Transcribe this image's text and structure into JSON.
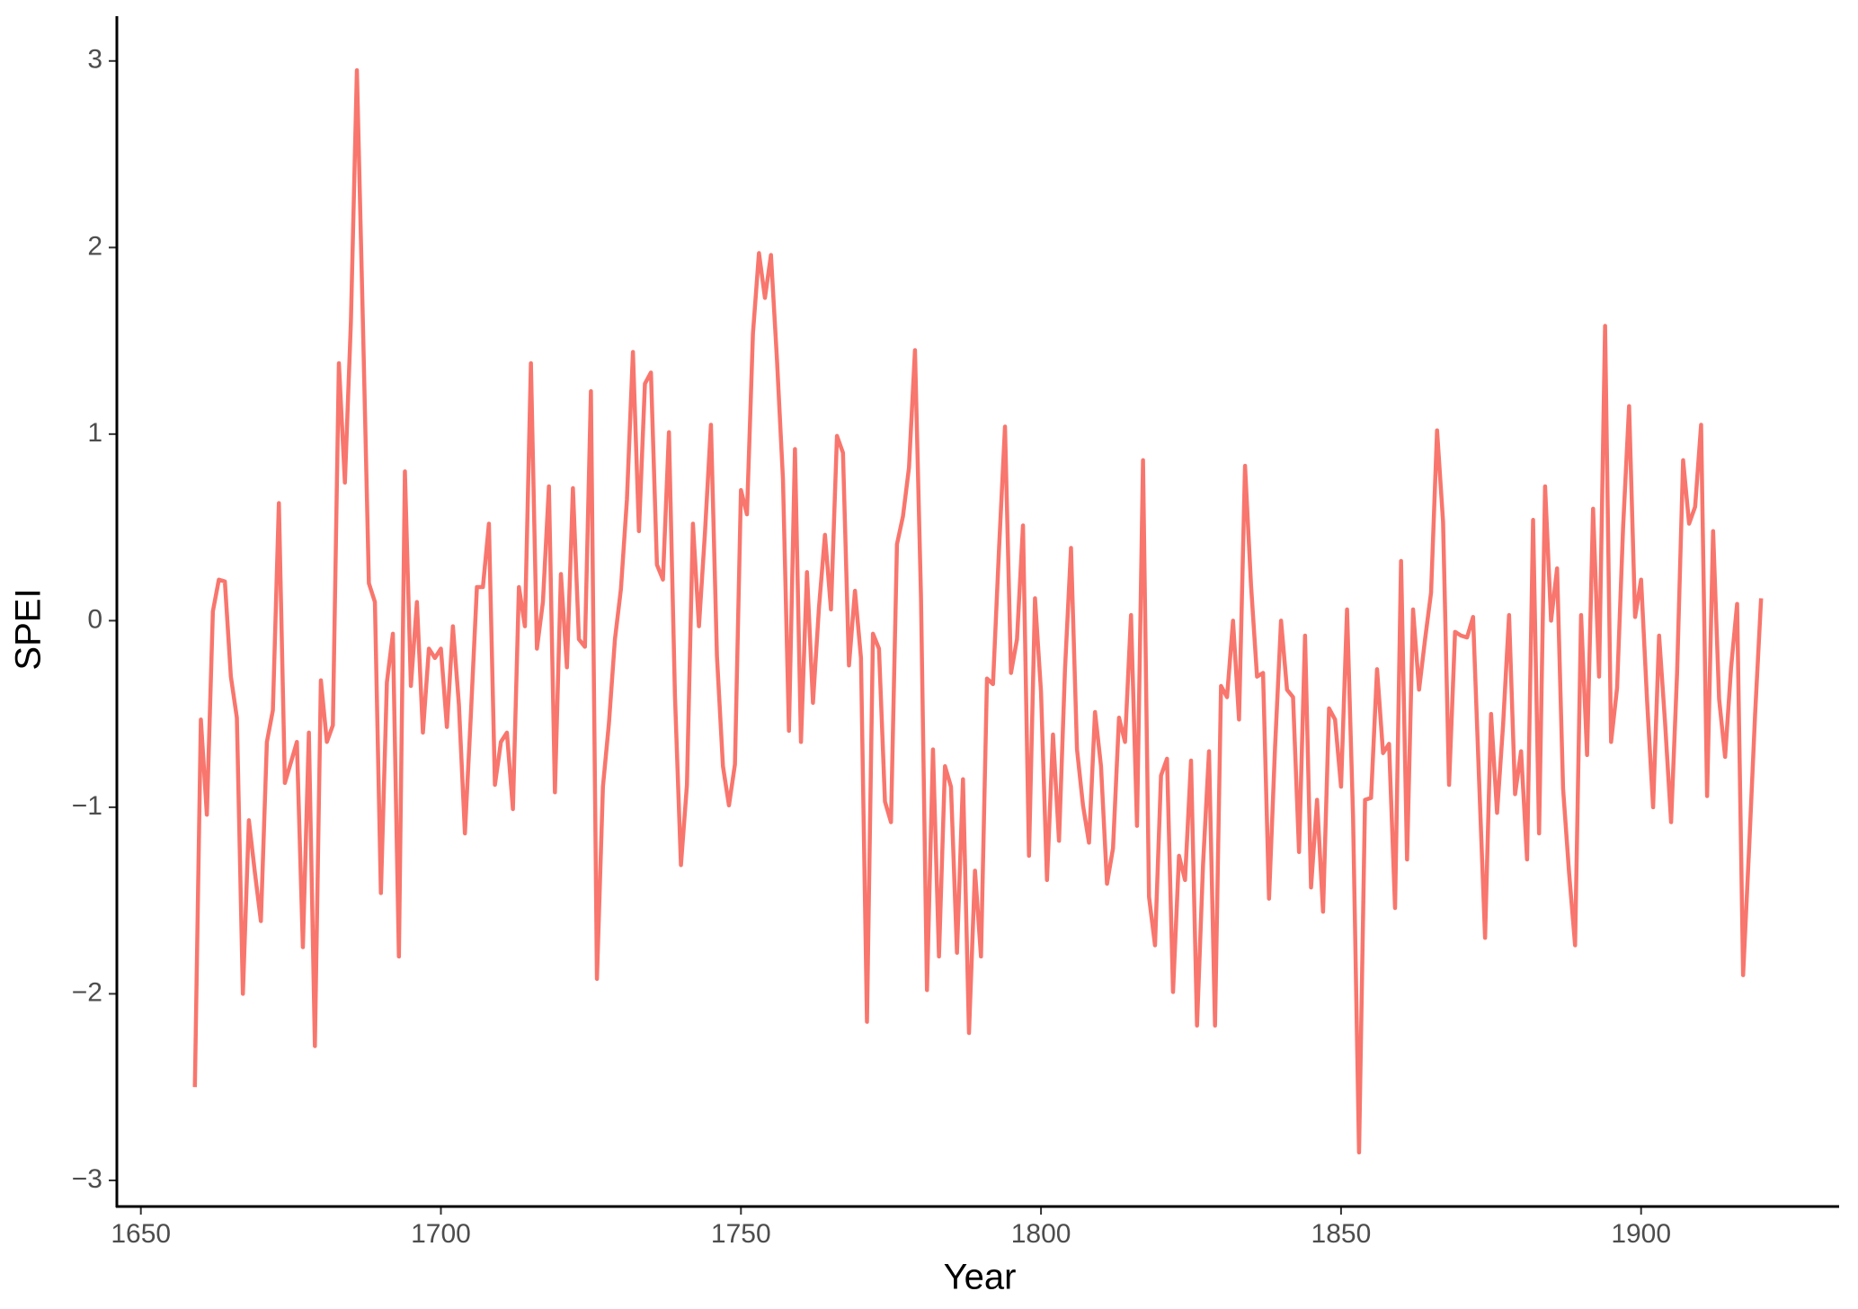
{
  "chart_data": {
    "type": "line",
    "xlabel": "Year",
    "ylabel": "SPEI",
    "color": "#F8766D",
    "x": [
      1659,
      1660,
      1661,
      1662,
      1663,
      1664,
      1665,
      1666,
      1667,
      1668,
      1669,
      1670,
      1671,
      1672,
      1673,
      1674,
      1675,
      1676,
      1677,
      1678,
      1679,
      1680,
      1681,
      1682,
      1683,
      1684,
      1685,
      1686,
      1687,
      1688,
      1689,
      1690,
      1691,
      1692,
      1693,
      1694,
      1695,
      1696,
      1697,
      1698,
      1699,
      1700,
      1701,
      1702,
      1703,
      1704,
      1705,
      1706,
      1707,
      1708,
      1709,
      1710,
      1711,
      1712,
      1713,
      1714,
      1715,
      1716,
      1717,
      1718,
      1719,
      1720,
      1721,
      1722,
      1723,
      1724,
      1725,
      1726,
      1727,
      1728,
      1729,
      1730,
      1731,
      1732,
      1733,
      1734,
      1735,
      1736,
      1737,
      1738,
      1739,
      1740,
      1741,
      1742,
      1743,
      1744,
      1745,
      1746,
      1747,
      1748,
      1749,
      1750,
      1751,
      1752,
      1753,
      1754,
      1755,
      1756,
      1757,
      1758,
      1759,
      1760,
      1761,
      1762,
      1763,
      1764,
      1765,
      1766,
      1767,
      1768,
      1769,
      1770,
      1771,
      1772,
      1773,
      1774,
      1775,
      1776,
      1777,
      1778,
      1779,
      1780,
      1781,
      1782,
      1783,
      1784,
      1785,
      1786,
      1787,
      1788,
      1789,
      1790,
      1791,
      1792,
      1793,
      1794,
      1795,
      1796,
      1797,
      1798,
      1799,
      1800,
      1801,
      1802,
      1803,
      1804,
      1805,
      1806,
      1807,
      1808,
      1809,
      1810,
      1811,
      1812,
      1813,
      1814,
      1815,
      1816,
      1817,
      1818,
      1819,
      1820,
      1821,
      1822,
      1823,
      1824,
      1825,
      1826,
      1827,
      1828,
      1829,
      1830,
      1831,
      1832,
      1833,
      1834,
      1835,
      1836,
      1837,
      1838,
      1839,
      1840,
      1841,
      1842,
      1843,
      1844,
      1845,
      1846,
      1847,
      1848,
      1849,
      1850,
      1851,
      1852,
      1853,
      1854,
      1855,
      1856,
      1857,
      1858,
      1859,
      1860,
      1861,
      1862,
      1863,
      1864,
      1865,
      1866,
      1867,
      1868,
      1869,
      1870,
      1871,
      1872,
      1873,
      1874,
      1875,
      1876,
      1877,
      1878,
      1879,
      1880,
      1881,
      1882,
      1883,
      1884,
      1885,
      1886,
      1887,
      1888,
      1889,
      1890,
      1891,
      1892,
      1893,
      1894,
      1895,
      1896,
      1897,
      1898,
      1899,
      1900,
      1901,
      1902,
      1903,
      1904,
      1905,
      1906,
      1907,
      1908,
      1909,
      1910,
      1911,
      1912,
      1913,
      1914,
      1915,
      1916,
      1917,
      1918,
      1919,
      1920
    ],
    "values": [
      -2.5,
      -0.53,
      -1.04,
      0.05,
      0.22,
      0.21,
      -0.3,
      -0.52,
      -2.0,
      -1.07,
      -1.35,
      -1.61,
      -0.65,
      -0.48,
      0.63,
      -0.87,
      -0.76,
      -0.65,
      -1.75,
      -0.6,
      -2.28,
      -0.32,
      -0.65,
      -0.56,
      1.38,
      0.74,
      1.6,
      2.95,
      1.6,
      0.2,
      0.1,
      -1.46,
      -0.33,
      -0.07,
      -1.8,
      0.8,
      -0.35,
      0.1,
      -0.6,
      -0.15,
      -0.2,
      -0.15,
      -0.57,
      -0.03,
      -0.45,
      -1.14,
      -0.5,
      0.18,
      0.18,
      0.52,
      -0.88,
      -0.65,
      -0.6,
      -1.01,
      0.18,
      -0.03,
      1.38,
      -0.15,
      0.1,
      0.72,
      -0.92,
      0.25,
      -0.25,
      0.71,
      -0.1,
      -0.14,
      1.23,
      -1.92,
      -0.89,
      -0.55,
      -0.1,
      0.17,
      0.65,
      1.44,
      0.48,
      1.27,
      1.33,
      0.3,
      0.22,
      1.01,
      -0.4,
      -1.31,
      -0.88,
      0.52,
      -0.03,
      0.47,
      1.05,
      -0.19,
      -0.78,
      -0.99,
      -0.77,
      0.7,
      0.57,
      1.54,
      1.97,
      1.73,
      1.96,
      1.4,
      0.76,
      -0.59,
      0.92,
      -0.65,
      0.26,
      -0.44,
      0.07,
      0.46,
      0.06,
      0.99,
      0.9,
      -0.24,
      0.16,
      -0.2,
      -2.15,
      -0.07,
      -0.15,
      -0.97,
      -1.08,
      0.41,
      0.56,
      0.82,
      1.45,
      0.13,
      -1.98,
      -0.69,
      -1.8,
      -0.78,
      -0.89,
      -1.78,
      -0.85,
      -2.21,
      -1.34,
      -1.8,
      -0.31,
      -0.34,
      0.38,
      1.04,
      -0.28,
      -0.1,
      0.51,
      -1.26,
      0.12,
      -0.38,
      -1.39,
      -0.61,
      -1.18,
      -0.26,
      0.39,
      -0.69,
      -0.99,
      -1.19,
      -0.49,
      -0.78,
      -1.41,
      -1.22,
      -0.52,
      -0.65,
      0.03,
      -1.1,
      0.86,
      -1.48,
      -1.74,
      -0.83,
      -0.74,
      -1.99,
      -1.26,
      -1.39,
      -0.75,
      -2.17,
      -1.31,
      -0.7,
      -2.17,
      -0.35,
      -0.41,
      0.0,
      -0.53,
      0.83,
      0.19,
      -0.3,
      -0.28,
      -1.49,
      -0.68,
      0.0,
      -0.37,
      -0.41,
      -1.24,
      -0.08,
      -1.43,
      -0.96,
      -1.56,
      -0.47,
      -0.53,
      -0.89,
      0.06,
      -1.05,
      -2.85,
      -0.96,
      -0.95,
      -0.26,
      -0.71,
      -0.66,
      -1.54,
      0.32,
      -1.28,
      0.06,
      -0.37,
      -0.1,
      0.15,
      1.02,
      0.53,
      -0.88,
      -0.06,
      -0.08,
      -0.09,
      0.02,
      -0.85,
      -1.7,
      -0.5,
      -1.03,
      -0.56,
      0.03,
      -0.93,
      -0.7,
      -1.28,
      0.54,
      -1.14,
      0.72,
      0.0,
      0.28,
      -0.9,
      -1.35,
      -1.74,
      0.03,
      -0.72,
      0.6,
      -0.3,
      1.58,
      -0.65,
      -0.36,
      0.5,
      1.15,
      0.02,
      0.22,
      -0.43,
      -1.0,
      -0.08,
      -0.55,
      -1.08,
      -0.28,
      0.86,
      0.52,
      0.61,
      1.05,
      -0.94,
      0.48,
      -0.42,
      -0.73,
      -0.25,
      0.09,
      -1.9,
      -1.22,
      -0.5,
      0.12
    ],
    "xlim": [
      1646,
      1933
    ],
    "xticks": [
      1650,
      1700,
      1750,
      1800,
      1850,
      1900
    ],
    "ylim": [
      -3.14,
      3.24
    ],
    "yticks": [
      {
        "value": -3,
        "label": "−3"
      },
      {
        "value": -2,
        "label": "−2"
      },
      {
        "value": -1,
        "label": "−1"
      },
      0,
      1,
      2,
      3
    ]
  }
}
